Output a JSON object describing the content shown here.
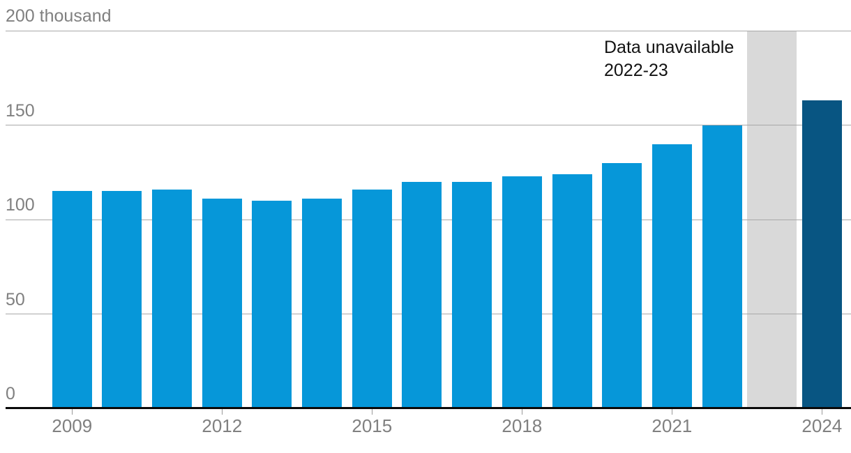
{
  "chart_data": {
    "type": "bar",
    "title": "",
    "xlabel": "",
    "ylabel": "thousand",
    "ylim": [
      0,
      200
    ],
    "grid": "horizontal",
    "categories": [
      2009,
      2010,
      2011,
      2012,
      2013,
      2014,
      2015,
      2016,
      2017,
      2018,
      2019,
      2020,
      2021,
      2022,
      2023,
      2024
    ],
    "values": [
      115,
      115,
      116,
      111,
      110,
      111,
      116,
      120,
      120,
      123,
      124,
      130,
      140,
      150,
      null,
      163
    ],
    "highlight_year": 2024,
    "missing_year": 2023,
    "y_axis": {
      "tick_values": [
        0,
        50,
        100,
        150,
        200
      ],
      "tick_labels": [
        "0",
        "50",
        "100",
        "150",
        "200 thousand"
      ]
    },
    "x_axis": {
      "tick_years": [
        2009,
        2012,
        2015,
        2018,
        2021,
        2024
      ]
    },
    "annotation": {
      "line1": "Data unavailable",
      "line2": "2022-23"
    },
    "colors": {
      "bar": "#0697d9",
      "bar_highlight": "#085582",
      "missing_band": "#d9d9d9",
      "gridline": "#a8a8a8",
      "axis_line": "#0a0a0a",
      "axis_text": "#808080",
      "tick_mark": "#999999",
      "annotation_text": "#121212",
      "background": "#ffffff"
    }
  }
}
